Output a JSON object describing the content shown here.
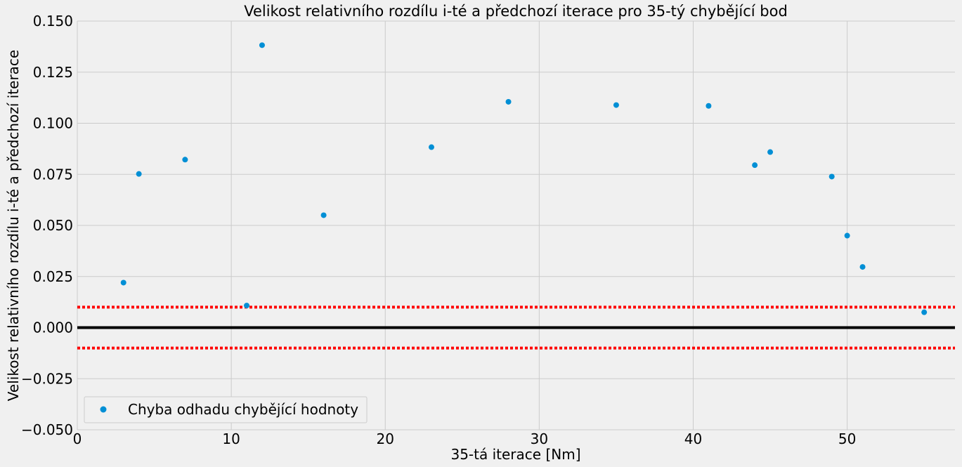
{
  "chart_data": {
    "type": "scatter",
    "title": "Velikost relativního rozdílu i-té a předchozí iterace pro 35-tý chybějící bod",
    "xlabel": "35-tá iterace [Nm]",
    "ylabel": "Velikost relativního rozdílu i-té a předchozí iterace",
    "xlim": [
      0,
      57
    ],
    "ylim": [
      -0.05,
      0.15
    ],
    "xticks": [
      0,
      10,
      20,
      30,
      40,
      50
    ],
    "xtick_labels": [
      "0",
      "10",
      "20",
      "30",
      "40",
      "50"
    ],
    "yticks": [
      -0.05,
      -0.025,
      0,
      0.025,
      0.05,
      0.075,
      0.1,
      0.125,
      0.15
    ],
    "ytick_labels": [
      "−0.050",
      "−0.025",
      "0.000",
      "0.025",
      "0.050",
      "0.075",
      "0.100",
      "0.125",
      "0.150"
    ],
    "grid": true,
    "legend_position": "lower-left",
    "series": [
      {
        "name": "Chyba odhadu chybějící hodnoty",
        "color": "#008fd5",
        "points": [
          {
            "x": 3,
            "y": 0.022
          },
          {
            "x": 4,
            "y": 0.0752
          },
          {
            "x": 7,
            "y": 0.0822
          },
          {
            "x": 11,
            "y": 0.0108
          },
          {
            "x": 12,
            "y": 0.1382
          },
          {
            "x": 16,
            "y": 0.055
          },
          {
            "x": 23,
            "y": 0.0883
          },
          {
            "x": 28,
            "y": 0.1105
          },
          {
            "x": 35,
            "y": 0.1089
          },
          {
            "x": 41,
            "y": 0.1085
          },
          {
            "x": 44,
            "y": 0.0795
          },
          {
            "x": 45,
            "y": 0.0859
          },
          {
            "x": 49,
            "y": 0.0739
          },
          {
            "x": 50,
            "y": 0.045
          },
          {
            "x": 51,
            "y": 0.0297
          },
          {
            "x": 55,
            "y": 0.0075
          }
        ]
      }
    ],
    "reference_lines": [
      {
        "y": 0,
        "color": "#000000",
        "style": "solid"
      },
      {
        "y": 0.01,
        "color": "#ff0000",
        "style": "dotted"
      },
      {
        "y": -0.01,
        "color": "#ff0000",
        "style": "dotted"
      }
    ]
  }
}
